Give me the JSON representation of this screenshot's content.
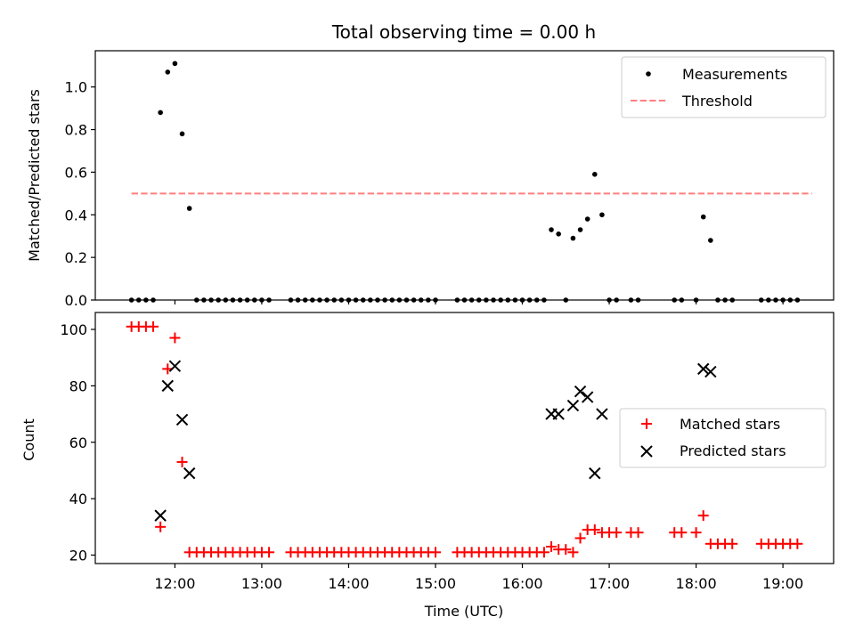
{
  "chart_data": [
    {
      "type": "scatter",
      "title": "Total observing time = 0.00 h",
      "ylabel": "Matched/Predicted stars",
      "xlim": [
        "11:05",
        "19:35"
      ],
      "ylim": [
        0,
        1.17
      ],
      "yticks": [
        0.0,
        0.2,
        0.4,
        0.6,
        0.8,
        1.0
      ],
      "ytick_labels": [
        "0.0",
        "0.2",
        "0.4",
        "0.6",
        "0.8",
        "1.0"
      ],
      "legend_placement": "top-right",
      "legend": [
        "Measurements",
        "Threshold"
      ],
      "colors": {
        "measurements": "#000000",
        "threshold": "#ff7f7f"
      },
      "threshold": {
        "name": "Threshold",
        "y": 0.5,
        "x_range": [
          "11:30",
          "19:20"
        ]
      },
      "series": [
        {
          "name": "Measurements",
          "x": [
            "11:30",
            "11:35",
            "11:40",
            "11:45",
            "11:50",
            "11:55",
            "12:00",
            "12:05",
            "12:10",
            "12:15",
            "12:20",
            "12:25",
            "12:30",
            "12:35",
            "12:40",
            "12:45",
            "12:50",
            "12:55",
            "13:00",
            "13:05",
            "13:20",
            "13:25",
            "13:30",
            "13:35",
            "13:40",
            "13:45",
            "13:50",
            "13:55",
            "14:00",
            "14:05",
            "14:10",
            "14:15",
            "14:20",
            "14:25",
            "14:30",
            "14:35",
            "14:40",
            "14:45",
            "14:50",
            "14:55",
            "15:00",
            "15:15",
            "15:20",
            "15:25",
            "15:30",
            "15:35",
            "15:40",
            "15:45",
            "15:50",
            "15:55",
            "16:00",
            "16:05",
            "16:10",
            "16:15",
            "16:20",
            "16:25",
            "16:30",
            "16:35",
            "16:40",
            "16:45",
            "16:50",
            "16:55",
            "17:00",
            "17:05",
            "17:15",
            "17:20",
            "17:45",
            "17:50",
            "18:00",
            "18:05",
            "18:10",
            "18:15",
            "18:20",
            "18:25",
            "18:45",
            "18:50",
            "18:55",
            "19:00",
            "19:05",
            "19:10"
          ],
          "y": [
            0,
            0,
            0,
            0,
            0.88,
            1.07,
            1.11,
            0.78,
            0.43,
            0,
            0,
            0,
            0,
            0,
            0,
            0,
            0,
            0,
            0,
            0,
            0,
            0,
            0,
            0,
            0,
            0,
            0,
            0,
            0,
            0,
            0,
            0,
            0,
            0,
            0,
            0,
            0,
            0,
            0,
            0,
            0,
            0,
            0,
            0,
            0,
            0,
            0,
            0,
            0,
            0,
            0,
            0,
            0,
            0,
            0.33,
            0.31,
            0,
            0.29,
            0.33,
            0.38,
            0.59,
            0.4,
            0,
            0,
            0,
            0,
            0,
            0,
            0,
            0.39,
            0.28,
            0,
            0,
            0,
            0,
            0,
            0,
            0,
            0,
            0
          ]
        }
      ]
    },
    {
      "type": "scatter",
      "xlabel": "Time (UTC)",
      "ylabel": "Count",
      "xlim": [
        "11:05",
        "19:35"
      ],
      "ylim": [
        17,
        106
      ],
      "xticks": [
        "12:00",
        "13:00",
        "14:00",
        "15:00",
        "16:00",
        "17:00",
        "18:00",
        "19:00"
      ],
      "yticks": [
        20,
        40,
        60,
        80,
        100
      ],
      "legend_placement": "center-right",
      "legend": [
        "Matched stars",
        "Predicted stars"
      ],
      "colors": {
        "matched": "#ff0000",
        "predicted": "#000000"
      },
      "series": [
        {
          "name": "Matched stars",
          "x": [
            "11:30",
            "11:35",
            "11:40",
            "11:45",
            "11:50",
            "11:55",
            "12:00",
            "12:05",
            "12:10",
            "12:15",
            "12:20",
            "12:25",
            "12:30",
            "12:35",
            "12:40",
            "12:45",
            "12:50",
            "12:55",
            "13:00",
            "13:05",
            "13:20",
            "13:25",
            "13:30",
            "13:35",
            "13:40",
            "13:45",
            "13:50",
            "13:55",
            "14:00",
            "14:05",
            "14:10",
            "14:15",
            "14:20",
            "14:25",
            "14:30",
            "14:35",
            "14:40",
            "14:45",
            "14:50",
            "14:55",
            "15:00",
            "15:15",
            "15:20",
            "15:25",
            "15:30",
            "15:35",
            "15:40",
            "15:45",
            "15:50",
            "15:55",
            "16:00",
            "16:05",
            "16:10",
            "16:15",
            "16:20",
            "16:25",
            "16:30",
            "16:35",
            "16:40",
            "16:45",
            "16:50",
            "16:55",
            "17:00",
            "17:05",
            "17:15",
            "17:20",
            "17:45",
            "17:50",
            "18:00",
            "18:05",
            "18:10",
            "18:15",
            "18:20",
            "18:25",
            "18:45",
            "18:50",
            "18:55",
            "19:00",
            "19:05",
            "19:10"
          ],
          "y": [
            101,
            101,
            101,
            101,
            30,
            86,
            97,
            53,
            21,
            21,
            21,
            21,
            21,
            21,
            21,
            21,
            21,
            21,
            21,
            21,
            21,
            21,
            21,
            21,
            21,
            21,
            21,
            21,
            21,
            21,
            21,
            21,
            21,
            21,
            21,
            21,
            21,
            21,
            21,
            21,
            21,
            21,
            21,
            21,
            21,
            21,
            21,
            21,
            21,
            21,
            21,
            21,
            21,
            21,
            23,
            22,
            22,
            21,
            26,
            29,
            29,
            28,
            28,
            28,
            28,
            28,
            28,
            28,
            28,
            34,
            24,
            24,
            24,
            24,
            24,
            24,
            24,
            24,
            24,
            24
          ]
        },
        {
          "name": "Predicted stars",
          "x": [
            "11:50",
            "11:55",
            "12:00",
            "12:05",
            "12:10",
            "16:20",
            "16:25",
            "16:35",
            "16:40",
            "16:45",
            "16:50",
            "16:55",
            "18:05",
            "18:10"
          ],
          "y": [
            34,
            80,
            87,
            68,
            49,
            70,
            70,
            73,
            78,
            76,
            49,
            70,
            86,
            85
          ]
        }
      ]
    }
  ]
}
